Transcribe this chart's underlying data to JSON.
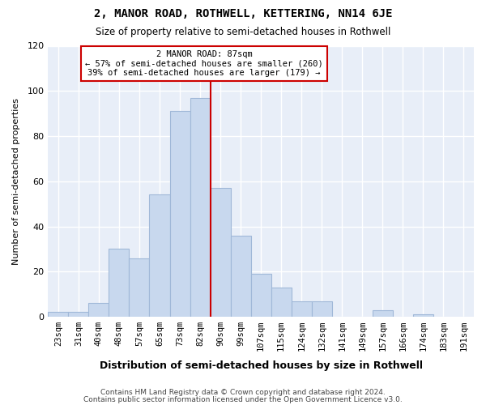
{
  "title": "2, MANOR ROAD, ROTHWELL, KETTERING, NN14 6JE",
  "subtitle": "Size of property relative to semi-detached houses in Rothwell",
  "xlabel": "Distribution of semi-detached houses by size in Rothwell",
  "ylabel": "Number of semi-detached properties",
  "bin_labels": [
    "23sqm",
    "31sqm",
    "40sqm",
    "48sqm",
    "57sqm",
    "65sqm",
    "73sqm",
    "82sqm",
    "90sqm",
    "99sqm",
    "107sqm",
    "115sqm",
    "124sqm",
    "132sqm",
    "141sqm",
    "149sqm",
    "157sqm",
    "166sqm",
    "174sqm",
    "183sqm",
    "191sqm"
  ],
  "bin_values": [
    2,
    2,
    6,
    30,
    26,
    54,
    91,
    97,
    57,
    36,
    19,
    13,
    7,
    7,
    0,
    0,
    3,
    0,
    1,
    0,
    0
  ],
  "bar_color": "#c8d8ee",
  "bar_edge_color": "#a0b8d8",
  "vline_color": "#cc0000",
  "annotation_title": "2 MANOR ROAD: 87sqm",
  "annotation_line1": "← 57% of semi-detached houses are smaller (260)",
  "annotation_line2": "39% of semi-detached houses are larger (179) →",
  "annotation_box_edgecolor": "#cc0000",
  "ylim": [
    0,
    120
  ],
  "yticks": [
    0,
    20,
    40,
    60,
    80,
    100,
    120
  ],
  "footer1": "Contains HM Land Registry data © Crown copyright and database right 2024.",
  "footer2": "Contains public sector information licensed under the Open Government Licence v3.0.",
  "plot_bg_color": "#e8eef8",
  "fig_bg_color": "#ffffff",
  "grid_color": "#ffffff"
}
